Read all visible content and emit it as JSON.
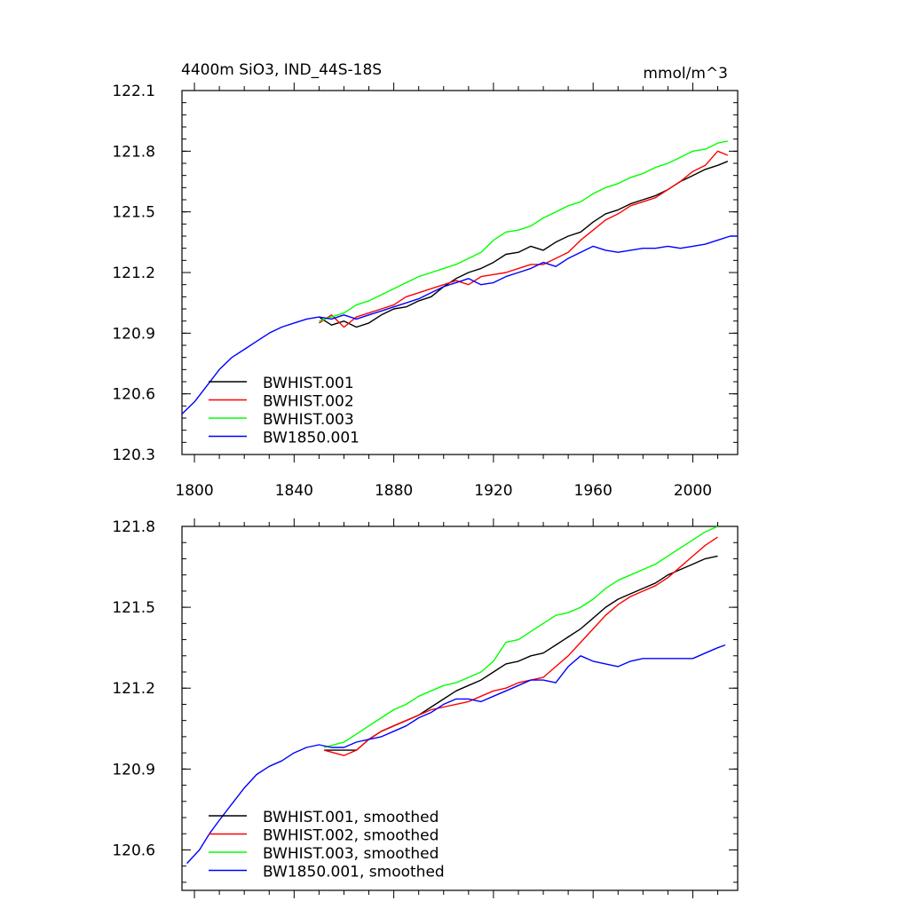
{
  "chart_data": [
    {
      "type": "line",
      "title": "4400m SiO3, IND_44S-18S",
      "units": "mmol/m^3",
      "xlim": [
        1795,
        2018
      ],
      "ylim": [
        120.3,
        122.1
      ],
      "xticks": [
        "1800",
        "1840",
        "1880",
        "1920",
        "1960",
        "2000"
      ],
      "yticks": [
        "120.3",
        "120.6",
        "120.9",
        "121.2",
        "121.5",
        "121.8",
        "122.1"
      ],
      "legend_position": "bottom-left",
      "series": [
        {
          "name": "BWHIST.001",
          "color": "#000000",
          "x": [
            1850,
            1855,
            1860,
            1865,
            1870,
            1875,
            1880,
            1885,
            1890,
            1895,
            1900,
            1905,
            1910,
            1915,
            1920,
            1925,
            1930,
            1935,
            1940,
            1945,
            1950,
            1955,
            1960,
            1965,
            1970,
            1975,
            1980,
            1985,
            1990,
            1995,
            2000,
            2005,
            2010,
            2014
          ],
          "y": [
            120.98,
            120.94,
            120.96,
            120.93,
            120.95,
            120.99,
            121.02,
            121.03,
            121.06,
            121.08,
            121.13,
            121.17,
            121.2,
            121.22,
            121.25,
            121.29,
            121.3,
            121.33,
            121.31,
            121.35,
            121.38,
            121.4,
            121.45,
            121.49,
            121.51,
            121.54,
            121.56,
            121.58,
            121.61,
            121.65,
            121.68,
            121.71,
            121.73,
            121.75
          ]
        },
        {
          "name": "BWHIST.002",
          "color": "#ff0000",
          "x": [
            1850,
            1855,
            1860,
            1865,
            1870,
            1875,
            1880,
            1885,
            1890,
            1895,
            1900,
            1905,
            1910,
            1915,
            1920,
            1925,
            1930,
            1935,
            1940,
            1945,
            1950,
            1955,
            1960,
            1965,
            1970,
            1975,
            1980,
            1985,
            1990,
            1995,
            2000,
            2005,
            2010,
            2014
          ],
          "y": [
            120.95,
            120.99,
            120.93,
            120.98,
            121.0,
            121.02,
            121.04,
            121.08,
            121.1,
            121.12,
            121.14,
            121.16,
            121.14,
            121.18,
            121.19,
            121.2,
            121.22,
            121.24,
            121.24,
            121.27,
            121.3,
            121.36,
            121.41,
            121.46,
            121.49,
            121.53,
            121.55,
            121.57,
            121.61,
            121.65,
            121.7,
            121.73,
            121.8,
            121.78
          ]
        },
        {
          "name": "BWHIST.003",
          "color": "#00ff00",
          "x": [
            1850,
            1855,
            1860,
            1865,
            1870,
            1875,
            1880,
            1885,
            1890,
            1895,
            1900,
            1905,
            1910,
            1915,
            1920,
            1925,
            1930,
            1935,
            1940,
            1945,
            1950,
            1955,
            1960,
            1965,
            1970,
            1975,
            1980,
            1985,
            1990,
            1995,
            2000,
            2005,
            2010,
            2014
          ],
          "y": [
            120.96,
            120.98,
            121.0,
            121.04,
            121.06,
            121.09,
            121.12,
            121.15,
            121.18,
            121.2,
            121.22,
            121.24,
            121.27,
            121.3,
            121.36,
            121.4,
            121.41,
            121.43,
            121.47,
            121.5,
            121.53,
            121.55,
            121.59,
            121.62,
            121.64,
            121.67,
            121.69,
            121.72,
            121.74,
            121.77,
            121.8,
            121.81,
            121.84,
            121.85
          ]
        },
        {
          "name": "BW1850.001",
          "color": "#0000ff",
          "x": [
            1795,
            1800,
            1805,
            1810,
            1815,
            1820,
            1825,
            1830,
            1835,
            1840,
            1845,
            1850,
            1855,
            1860,
            1865,
            1870,
            1875,
            1880,
            1885,
            1890,
            1895,
            1900,
            1905,
            1910,
            1915,
            1920,
            1925,
            1930,
            1935,
            1940,
            1945,
            1950,
            1955,
            1960,
            1965,
            1970,
            1975,
            1980,
            1985,
            1990,
            1995,
            2000,
            2005,
            2010,
            2015,
            2018
          ],
          "y": [
            120.5,
            120.56,
            120.64,
            120.72,
            120.78,
            120.82,
            120.86,
            120.9,
            120.93,
            120.95,
            120.97,
            120.98,
            120.97,
            120.99,
            120.97,
            120.99,
            121.01,
            121.03,
            121.05,
            121.07,
            121.1,
            121.13,
            121.15,
            121.17,
            121.14,
            121.15,
            121.18,
            121.2,
            121.22,
            121.25,
            121.23,
            121.27,
            121.3,
            121.33,
            121.31,
            121.3,
            121.31,
            121.32,
            121.32,
            121.33,
            121.32,
            121.33,
            121.34,
            121.36,
            121.38,
            121.38
          ]
        }
      ]
    },
    {
      "type": "line",
      "title": "",
      "xlim": [
        1795,
        2018
      ],
      "ylim": [
        120.45,
        121.8
      ],
      "yticks": [
        "120.6",
        "120.9",
        "121.2",
        "121.5",
        "121.8"
      ],
      "legend_position": "bottom-left",
      "series": [
        {
          "name": "BWHIST.001, smoothed",
          "color": "#000000",
          "x": [
            1852,
            1860,
            1865,
            1870,
            1875,
            1880,
            1885,
            1890,
            1895,
            1900,
            1905,
            1910,
            1915,
            1920,
            1925,
            1930,
            1935,
            1940,
            1945,
            1950,
            1955,
            1960,
            1965,
            1970,
            1975,
            1980,
            1985,
            1990,
            1995,
            2000,
            2005,
            2010
          ],
          "y": [
            120.97,
            120.97,
            120.97,
            121.01,
            121.04,
            121.06,
            121.08,
            121.1,
            121.13,
            121.16,
            121.19,
            121.21,
            121.23,
            121.26,
            121.29,
            121.3,
            121.32,
            121.33,
            121.36,
            121.39,
            121.42,
            121.46,
            121.5,
            121.53,
            121.55,
            121.57,
            121.59,
            121.62,
            121.64,
            121.66,
            121.68,
            121.69
          ]
        },
        {
          "name": "BWHIST.002, smoothed",
          "color": "#ff0000",
          "x": [
            1852,
            1860,
            1865,
            1870,
            1875,
            1880,
            1885,
            1890,
            1895,
            1900,
            1905,
            1910,
            1915,
            1920,
            1925,
            1930,
            1935,
            1940,
            1945,
            1950,
            1955,
            1960,
            1965,
            1970,
            1975,
            1980,
            1985,
            1990,
            1995,
            2000,
            2005,
            2010
          ],
          "y": [
            120.97,
            120.95,
            120.97,
            121.01,
            121.04,
            121.06,
            121.08,
            121.1,
            121.12,
            121.13,
            121.14,
            121.15,
            121.17,
            121.19,
            121.2,
            121.22,
            121.23,
            121.24,
            121.28,
            121.32,
            121.37,
            121.42,
            121.47,
            121.51,
            121.54,
            121.56,
            121.58,
            121.61,
            121.65,
            121.69,
            121.73,
            121.76
          ]
        },
        {
          "name": "BWHIST.003, smoothed",
          "color": "#00ff00",
          "x": [
            1852,
            1860,
            1865,
            1870,
            1875,
            1880,
            1885,
            1890,
            1895,
            1900,
            1905,
            1910,
            1915,
            1920,
            1925,
            1930,
            1935,
            1940,
            1945,
            1950,
            1955,
            1960,
            1965,
            1970,
            1975,
            1980,
            1985,
            1990,
            1995,
            2000,
            2005,
            2010
          ],
          "y": [
            120.98,
            121.0,
            121.03,
            121.06,
            121.09,
            121.12,
            121.14,
            121.17,
            121.19,
            121.21,
            121.22,
            121.24,
            121.26,
            121.3,
            121.37,
            121.38,
            121.41,
            121.44,
            121.47,
            121.48,
            121.5,
            121.53,
            121.57,
            121.6,
            121.62,
            121.64,
            121.66,
            121.69,
            121.72,
            121.75,
            121.78,
            121.8
          ]
        },
        {
          "name": "BW1850.001, smoothed",
          "color": "#0000ff",
          "x": [
            1797,
            1802,
            1806,
            1810,
            1815,
            1820,
            1825,
            1830,
            1835,
            1840,
            1845,
            1850,
            1855,
            1860,
            1865,
            1870,
            1875,
            1880,
            1885,
            1890,
            1895,
            1900,
            1905,
            1910,
            1915,
            1920,
            1925,
            1930,
            1935,
            1940,
            1945,
            1950,
            1955,
            1960,
            1965,
            1970,
            1975,
            1980,
            1985,
            1990,
            1995,
            2000,
            2005,
            2010,
            2013
          ],
          "y": [
            120.55,
            120.6,
            120.66,
            120.71,
            120.77,
            120.83,
            120.88,
            120.91,
            120.93,
            120.96,
            120.98,
            120.99,
            120.98,
            120.98,
            121.0,
            121.01,
            121.02,
            121.04,
            121.06,
            121.09,
            121.11,
            121.14,
            121.16,
            121.16,
            121.15,
            121.17,
            121.19,
            121.21,
            121.23,
            121.23,
            121.22,
            121.28,
            121.32,
            121.3,
            121.29,
            121.28,
            121.3,
            121.31,
            121.31,
            121.31,
            121.31,
            121.31,
            121.33,
            121.35,
            121.36
          ]
        }
      ]
    }
  ]
}
